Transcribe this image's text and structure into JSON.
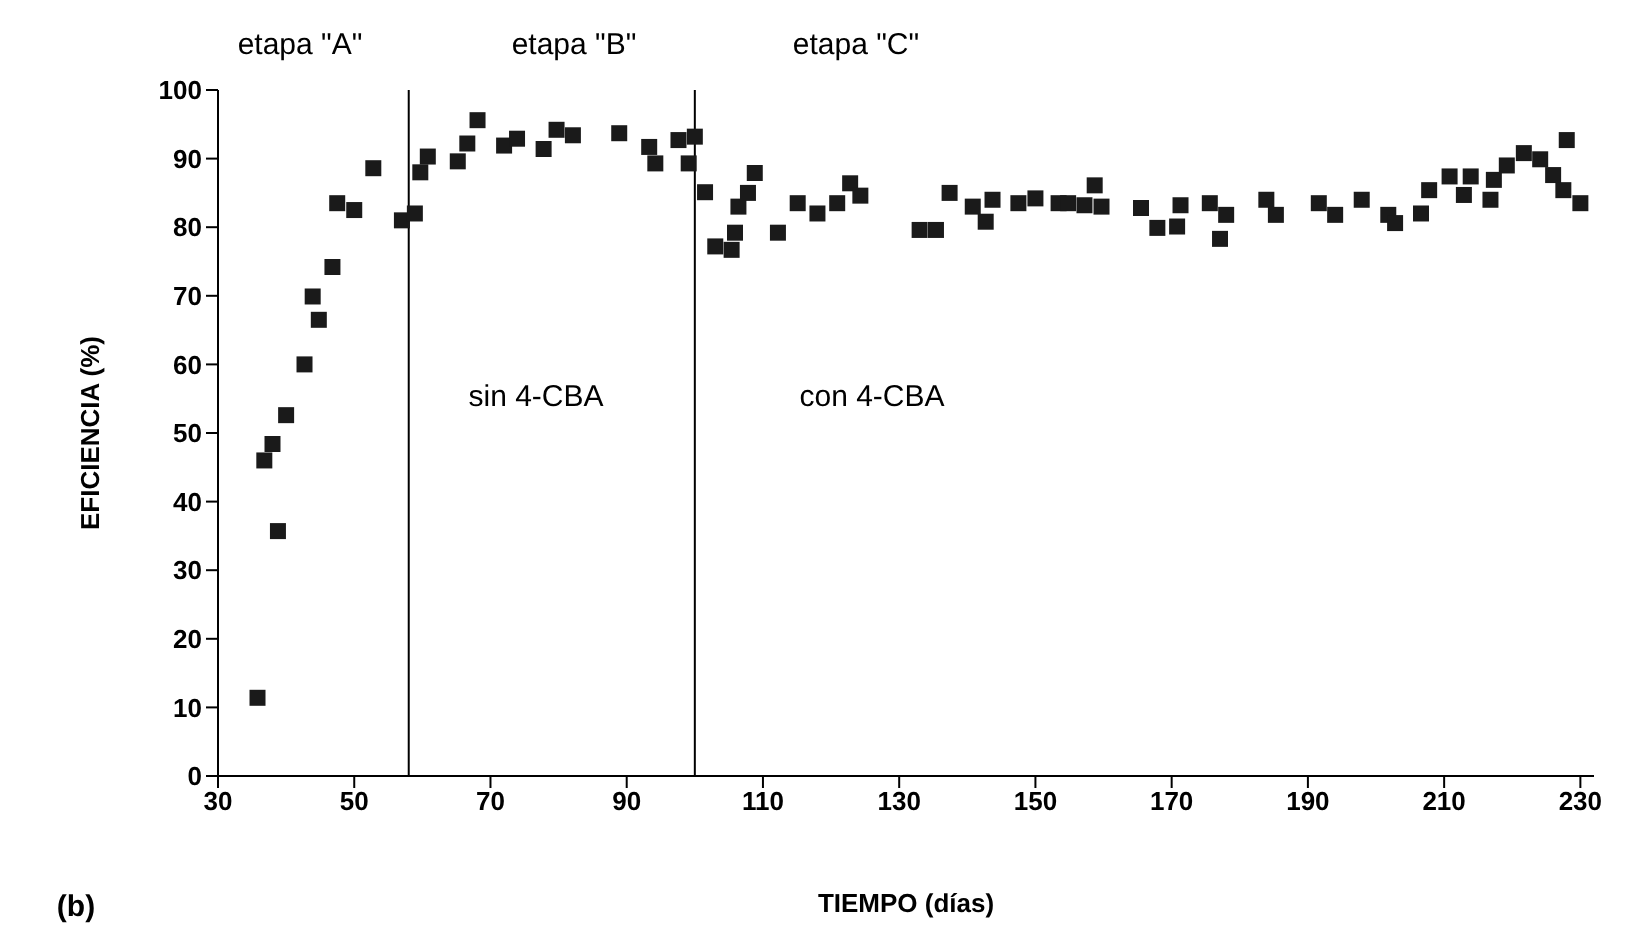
{
  "chart_data": {
    "type": "scatter",
    "xlabel": "TIEMPO (días)",
    "ylabel": "EFICIENCIA (%)",
    "xlim": [
      30,
      232
    ],
    "xticks": [
      30,
      50,
      70,
      90,
      110,
      130,
      150,
      170,
      190,
      210,
      230
    ],
    "ylim": [
      0,
      100
    ],
    "yticks": [
      0,
      10,
      20,
      30,
      40,
      50,
      60,
      70,
      80,
      90,
      100
    ],
    "grid": false,
    "legend": false,
    "marker": "square",
    "ref_lines": [
      {
        "axis": "x",
        "value": 58,
        "color": "#000000"
      },
      {
        "axis": "x",
        "value": 100,
        "color": "#000000"
      }
    ],
    "annotations": [
      "etapa \"A\"",
      "etapa \"B\"",
      "etapa \"C\"",
      "sin 4-CBA",
      "con 4-CBA",
      "(b)"
    ],
    "series": [
      {
        "color": "#1a1a1a",
        "x": [
          35.8,
          36.8,
          38,
          38.8,
          40,
          42.7,
          43.9,
          44.8,
          46.8,
          47.5,
          50,
          52.8,
          57,
          58.9,
          59.7,
          60.8,
          65.2,
          66.6,
          68.1,
          72,
          73.9,
          77.8,
          79.7,
          82.1,
          88.9,
          93.3,
          94.2,
          97.6,
          99.1,
          100,
          101.5,
          103,
          105.4,
          105.9,
          106.4,
          107.8,
          108.8,
          112.2,
          115.1,
          118,
          120.9,
          122.8,
          124.3,
          133,
          135.4,
          137.4,
          140.8,
          142.7,
          143.7,
          147.5,
          150,
          153.4,
          154.8,
          157.2,
          158.7,
          159.7,
          165.5,
          167.9,
          170.8,
          171.3,
          175.6,
          177.1,
          178,
          183.9,
          185.3,
          191.6,
          194,
          197.9,
          201.8,
          202.8,
          206.6,
          207.8,
          210.8,
          212.9,
          213.9,
          216.8,
          217.3,
          219.2,
          221.7,
          224.1,
          226,
          227.5,
          228,
          230
        ],
        "values": [
          11.4,
          46,
          48.4,
          35.7,
          52.6,
          60,
          69.9,
          66.5,
          74.2,
          83.5,
          82.5,
          88.6,
          81,
          82,
          88,
          90.3,
          89.6,
          92.2,
          95.6,
          91.9,
          92.9,
          91.4,
          94.2,
          93.4,
          93.7,
          91.7,
          89.3,
          92.7,
          89.3,
          93.2,
          85.1,
          77.2,
          76.7,
          79.2,
          83,
          85,
          87.9,
          79.2,
          83.5,
          82,
          83.5,
          86.4,
          84.6,
          79.6,
          79.6,
          85,
          83,
          80.8,
          84,
          83.5,
          84.2,
          83.5,
          83.5,
          83.2,
          86.1,
          83,
          82.8,
          79.9,
          80.1,
          83.2,
          83.5,
          78.3,
          81.8,
          84,
          81.8,
          83.5,
          81.8,
          84,
          81.8,
          80.6,
          82,
          85.4,
          87.4,
          84.7,
          87.4,
          84,
          86.9,
          89,
          90.8,
          89.9,
          87.6,
          85.4,
          92.7,
          83.5
        ]
      }
    ]
  }
}
